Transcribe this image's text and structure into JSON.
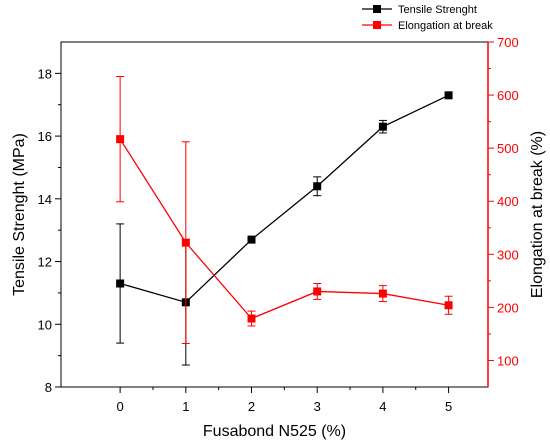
{
  "chart_data": {
    "type": "line",
    "title": "",
    "xlabel": "Fusabond N525 (%)",
    "ylabel_left": "Tensile Strenght (MPa)",
    "ylabel_right": "Elongation at break (%)",
    "x": [
      0,
      1,
      2,
      3,
      4,
      5
    ],
    "xlim": [
      -0.9,
      5.6
    ],
    "ylim_left": [
      8,
      19
    ],
    "ylim_right": [
      50,
      700
    ],
    "xticks": [
      0,
      1,
      2,
      3,
      4,
      5
    ],
    "yticks_left": [
      8,
      10,
      12,
      14,
      16,
      18
    ],
    "yticks_right": [
      100,
      200,
      300,
      400,
      500,
      600,
      700
    ],
    "grid": false,
    "legend_position": "top-right",
    "series": [
      {
        "name": "Tensile Strenght",
        "axis": "left",
        "color": "#000000",
        "values": [
          11.3,
          10.7,
          12.7,
          14.4,
          16.3,
          17.3
        ],
        "errors": [
          1.9,
          2.0,
          0.0,
          0.3,
          0.2,
          0.0
        ]
      },
      {
        "name": "Elongation at break",
        "axis": "right",
        "color": "#ff0000",
        "values": [
          517,
          322,
          179,
          230,
          226,
          204
        ],
        "errors": [
          118,
          190,
          14,
          15,
          15,
          17
        ]
      }
    ]
  }
}
